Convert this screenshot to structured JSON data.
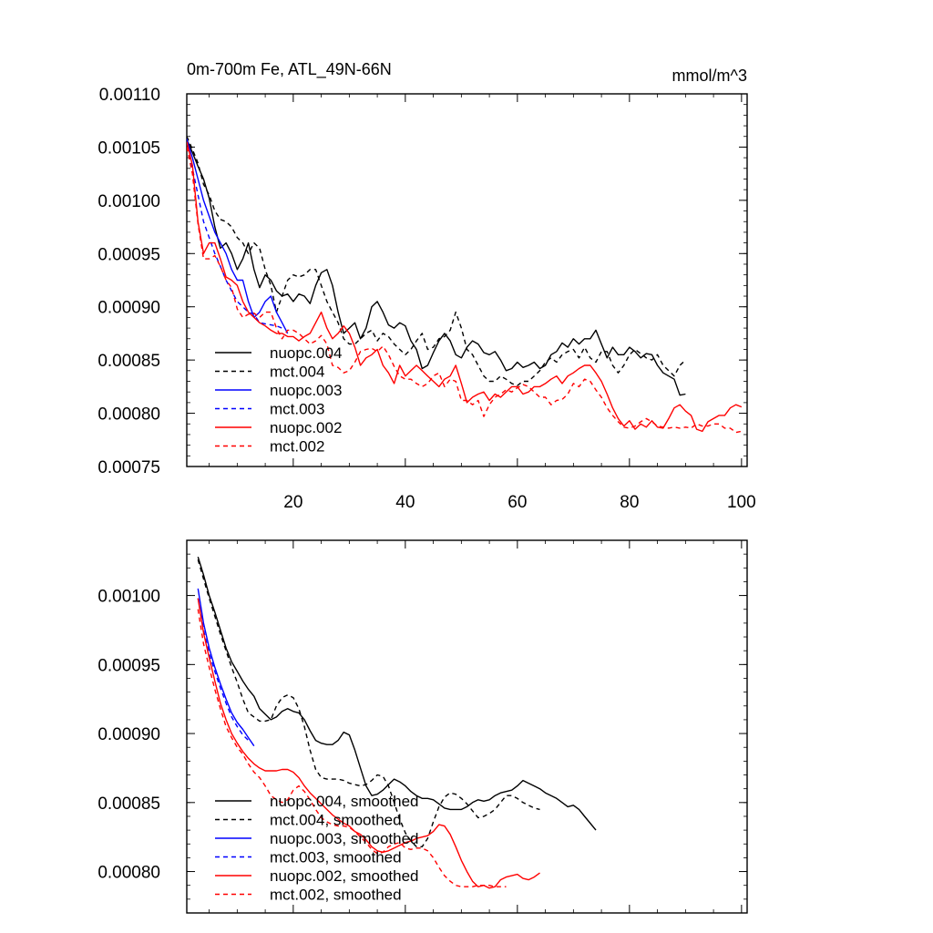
{
  "chart_data": [
    {
      "type": "line",
      "title": "0m-700m Fe, ATL_49N-66N",
      "units": "mmol/m^3",
      "xlim": [
        1,
        101
      ],
      "ylim": [
        0.00075,
        0.0011
      ],
      "xticks": [
        20,
        40,
        60,
        80,
        100
      ],
      "yticks": [
        0.00075,
        0.0008,
        0.00085,
        0.0009,
        0.00095,
        0.001,
        0.00105,
        0.0011
      ],
      "ytick_labels": [
        "0.00075",
        "0.00080",
        "0.00085",
        "0.00090",
        "0.00095",
        "0.00100",
        "0.00105",
        "0.00110"
      ],
      "legend": "bottom-left",
      "series": [
        {
          "name": "nuopc.004",
          "color": "#000000",
          "dash": "solid",
          "x_start": 1,
          "values": [
            0.001057,
            0.001045,
            0.001032,
            0.00102,
            0.001002,
            0.000975,
            0.000955,
            0.00096,
            0.00095,
            0.000935,
            0.000945,
            0.00096,
            0.000935,
            0.000918,
            0.00093,
            0.000925,
            0.000915,
            0.00091,
            0.000912,
            0.000905,
            0.000912,
            0.00091,
            0.000903,
            0.00092,
            0.000932,
            0.000935,
            0.00092,
            0.000895,
            0.000875,
            0.00088,
            0.000885,
            0.00087,
            0.00088,
            0.0009,
            0.000905,
            0.000895,
            0.000883,
            0.00088,
            0.000885,
            0.000882,
            0.000868,
            0.00086,
            0.000842,
            0.000845,
            0.000857,
            0.000868,
            0.000875,
            0.000868,
            0.000855,
            0.000852,
            0.000862,
            0.000868,
            0.000865,
            0.000857,
            0.000855,
            0.000858,
            0.00085,
            0.00084,
            0.000842,
            0.000848,
            0.000843,
            0.000845,
            0.000848,
            0.000842,
            0.000845,
            0.000855,
            0.000858,
            0.000866,
            0.000862,
            0.00087,
            0.000865,
            0.00087,
            0.00087,
            0.000878,
            0.000865,
            0.000852,
            0.000862,
            0.000855,
            0.000855,
            0.000862,
            0.000858,
            0.000852,
            0.000856,
            0.000855,
            0.000845,
            0.000838,
            0.000835,
            0.000832,
            0.000817,
            0.000818
          ]
        },
        {
          "name": "mct.004",
          "color": "#000000",
          "dash": "dashed",
          "x_start": 1,
          "values": [
            0.00106,
            0.001048,
            0.001035,
            0.001015,
            0.001005,
            0.00099,
            0.000982,
            0.00098,
            0.000975,
            0.000965,
            0.00096,
            0.00095,
            0.00096,
            0.000955,
            0.000935,
            0.00092,
            0.000895,
            0.00091,
            0.000925,
            0.00093,
            0.000928,
            0.00093,
            0.000935,
            0.000935,
            0.00092,
            0.000905,
            0.000895,
            0.000885,
            0.00087,
            0.000865,
            0.000865,
            0.00087,
            0.000875,
            0.000878,
            0.000868,
            0.000875,
            0.000872,
            0.000865,
            0.00086,
            0.000855,
            0.00086,
            0.000868,
            0.000875,
            0.00086,
            0.000862,
            0.00087,
            0.000872,
            0.000878,
            0.000895,
            0.00088,
            0.00086,
            0.000855,
            0.000845,
            0.000835,
            0.00083,
            0.00083,
            0.000835,
            0.000832,
            0.000828,
            0.000826,
            0.00083,
            0.00083,
            0.000835,
            0.00084,
            0.000848,
            0.000852,
            0.000848,
            0.000855,
            0.000858,
            0.00086,
            0.000852,
            0.000862,
            0.000852,
            0.000848,
            0.000858,
            0.000858,
            0.000845,
            0.000838,
            0.000845,
            0.000855,
            0.00086,
            0.000856,
            0.000852,
            0.00085,
            0.000855,
            0.000845,
            0.00084,
            0.000835,
            0.000845,
            0.00085
          ]
        },
        {
          "name": "nuopc.003",
          "color": "#0000ff",
          "dash": "solid",
          "x_start": 1,
          "values": [
            0.001057,
            0.00104,
            0.00102,
            0.001,
            0.000985,
            0.00097,
            0.00096,
            0.00095,
            0.000935,
            0.000925,
            0.000925,
            0.000905,
            0.00089,
            0.000895,
            0.000905,
            0.00091,
            0.000895,
            0.000885,
            0.000875
          ]
        },
        {
          "name": "mct.003",
          "color": "#0000ff",
          "dash": "dashed",
          "x_start": 1,
          "values": [
            0.001058,
            0.00103,
            0.001005,
            0.00098,
            0.000965,
            0.00095,
            0.000938,
            0.000925,
            0.000915,
            0.000905,
            0.0009,
            0.000895,
            0.000893,
            0.000885,
            0.000884,
            0.000883,
            0.000882,
            0.00088
          ]
        },
        {
          "name": "nuopc.002",
          "color": "#ff0000",
          "dash": "solid",
          "x_start": 1,
          "values": [
            0.001055,
            0.001033,
            0.00098,
            0.00095,
            0.00096,
            0.00096,
            0.000945,
            0.000928,
            0.000925,
            0.00092,
            0.000905,
            0.000895,
            0.00089,
            0.000885,
            0.000882,
            0.000878,
            0.000875,
            0.000875,
            0.000872,
            0.000872,
            0.000868,
            0.000872,
            0.000875,
            0.000885,
            0.000895,
            0.00088,
            0.00087,
            0.000875,
            0.000882,
            0.000875,
            0.000862,
            0.000845,
            0.000852,
            0.000855,
            0.00086,
            0.000845,
            0.000838,
            0.000828,
            0.000845,
            0.000835,
            0.00084,
            0.000845,
            0.00084,
            0.000835,
            0.00083,
            0.000825,
            0.000832,
            0.000835,
            0.000845,
            0.000828,
            0.00081,
            0.000815,
            0.000818,
            0.00082,
            0.000812,
            0.000818,
            0.000815,
            0.00082,
            0.000825,
            0.000825,
            0.000818,
            0.00082,
            0.000825,
            0.000825,
            0.000828,
            0.000832,
            0.000835,
            0.000828,
            0.000835,
            0.000838,
            0.000842,
            0.000845,
            0.000845,
            0.000838,
            0.00083,
            0.000818,
            0.000805,
            0.000795,
            0.000788,
            0.000793,
            0.000785,
            0.00079,
            0.000787,
            0.000793,
            0.000787,
            0.000786,
            0.000795,
            0.000805,
            0.000808,
            0.000802,
            0.000798,
            0.000785,
            0.000783,
            0.000792,
            0.000795,
            0.000798,
            0.000798,
            0.000805,
            0.000808,
            0.000806
          ]
        },
        {
          "name": "mct.002",
          "color": "#ff0000",
          "dash": "dashed",
          "x_start": 1,
          "values": [
            0.00105,
            0.001025,
            0.000978,
            0.000945,
            0.000945,
            0.000948,
            0.000938,
            0.000925,
            0.000918,
            0.000898,
            0.00089,
            0.000893,
            0.000894,
            0.00089,
            0.000895,
            0.000895,
            0.00088,
            0.00087,
            0.000878,
            0.000878,
            0.000875,
            0.00087,
            0.000865,
            0.000868,
            0.000873,
            0.000865,
            0.000845,
            0.000843,
            0.000838,
            0.00084,
            0.000848,
            0.000858,
            0.00086,
            0.000861,
            0.000858,
            0.000863,
            0.000855,
            0.000844,
            0.000835,
            0.000832,
            0.000832,
            0.000828,
            0.000825,
            0.000828,
            0.000835,
            0.000838,
            0.000825,
            0.000832,
            0.00083,
            0.000812,
            0.000812,
            0.000808,
            0.000812,
            0.000797,
            0.000808,
            0.000815,
            0.000818,
            0.000822,
            0.00082,
            0.000824,
            0.000827,
            0.000825,
            0.00082,
            0.000815,
            0.000815,
            0.000808,
            0.000812,
            0.000813,
            0.000818,
            0.000828,
            0.000825,
            0.000832,
            0.00083,
            0.000822,
            0.000815,
            0.000805,
            0.000798,
            0.000792,
            0.000787,
            0.000786,
            0.000788,
            0.000792,
            0.000795,
            0.000792,
            0.000788,
            0.000787,
            0.000786,
            0.000787,
            0.000786,
            0.000787,
            0.000786,
            0.00079,
            0.000788,
            0.000788,
            0.00079,
            0.00079,
            0.000786,
            0.000786,
            0.000782,
            0.000783
          ]
        }
      ]
    },
    {
      "type": "line",
      "xlim": [
        1,
        101
      ],
      "ylim": [
        0.00077,
        0.00104
      ],
      "xticks": [
        20,
        40,
        60,
        80,
        100
      ],
      "yticks": [
        0.0008,
        0.00085,
        0.0009,
        0.00095,
        0.001
      ],
      "ytick_labels": [
        "0.00080",
        "0.00085",
        "0.00090",
        "0.00095",
        "0.00100"
      ],
      "legend": "bottom-left",
      "series": [
        {
          "name": "nuopc.004, smoothed",
          "color": "#000000",
          "dash": "solid",
          "x_start": 3,
          "values": [
            0.001028,
            0.001015,
            0.001,
            0.000988,
            0.000975,
            0.000962,
            0.000952,
            0.000945,
            0.000938,
            0.000932,
            0.000927,
            0.000918,
            0.000914,
            0.00091,
            0.000912,
            0.000916,
            0.000918,
            0.000916,
            0.000915,
            0.00091,
            0.000902,
            0.000895,
            0.000893,
            0.000892,
            0.000892,
            0.000895,
            0.000901,
            0.000899,
            0.000888,
            0.000875,
            0.000862,
            0.000855,
            0.000856,
            0.000859,
            0.000863,
            0.000867,
            0.000865,
            0.000862,
            0.000858,
            0.000855,
            0.000853,
            0.000853,
            0.000852,
            0.000849,
            0.000846,
            0.000845,
            0.000845,
            0.000845,
            0.000847,
            0.00085,
            0.000852,
            0.000851,
            0.000852,
            0.000855,
            0.000857,
            0.000858,
            0.000859,
            0.000862,
            0.000866,
            0.000864,
            0.000862,
            0.00086,
            0.000857,
            0.000855,
            0.000853,
            0.00085,
            0.000847,
            0.000848,
            0.000845,
            0.00084,
            0.000835,
            0.00083
          ]
        },
        {
          "name": "mct.004, smoothed",
          "color": "#000000",
          "dash": "dashed",
          "x_start": 3,
          "values": [
            0.001026,
            0.001012,
            0.000998,
            0.000985,
            0.000972,
            0.00096,
            0.000948,
            0.000937,
            0.000925,
            0.000915,
            0.000912,
            0.000909,
            0.000909,
            0.00091,
            0.00092,
            0.000926,
            0.000928,
            0.000926,
            0.000918,
            0.000905,
            0.000888,
            0.000874,
            0.000868,
            0.000867,
            0.000867,
            0.000867,
            0.000866,
            0.000864,
            0.000863,
            0.000862,
            0.000863,
            0.000866,
            0.00087,
            0.000869,
            0.000862,
            0.00085,
            0.000838,
            0.000828,
            0.000822,
            0.000818,
            0.000818,
            0.000824,
            0.000836,
            0.000847,
            0.000854,
            0.000857,
            0.000856,
            0.000853,
            0.000849,
            0.000844,
            0.000839,
            0.00084,
            0.000842,
            0.000845,
            0.00085,
            0.000855,
            0.000855,
            0.000853,
            0.00085,
            0.000848,
            0.000846,
            0.000845
          ]
        },
        {
          "name": "nuopc.003, smoothed",
          "color": "#0000ff",
          "dash": "solid",
          "x_start": 3,
          "values": [
            0.001005,
            0.00098,
            0.000962,
            0.000948,
            0.000936,
            0.000925,
            0.000915,
            0.000908,
            0.000903,
            0.000897,
            0.000891
          ]
        },
        {
          "name": "mct.003, smoothed",
          "color": "#0000ff",
          "dash": "dashed",
          "x_start": 3,
          "values": [
            0.000998,
            0.000975,
            0.000958,
            0.000945,
            0.000933,
            0.000922,
            0.000912,
            0.000905,
            0.000899,
            0.000895
          ]
        },
        {
          "name": "nuopc.002, smoothed",
          "color": "#ff0000",
          "dash": "solid",
          "x_start": 3,
          "values": [
            0.000998,
            0.000973,
            0.000955,
            0.000938,
            0.000922,
            0.00091,
            0.0009,
            0.000893,
            0.000887,
            0.000882,
            0.000878,
            0.000875,
            0.000873,
            0.000873,
            0.000873,
            0.000874,
            0.000874,
            0.000872,
            0.000868,
            0.000862,
            0.000857,
            0.000853,
            0.000849,
            0.000845,
            0.000841,
            0.000838,
            0.000835,
            0.000833,
            0.000829,
            0.000827,
            0.000823,
            0.000818,
            0.000815,
            0.000814,
            0.000815,
            0.000817,
            0.000819,
            0.000821,
            0.000822,
            0.000824,
            0.000825,
            0.000826,
            0.000829,
            0.000834,
            0.000833,
            0.000827,
            0.000818,
            0.000808,
            0.0008,
            0.000793,
            0.000789,
            0.00079,
            0.000788,
            0.000789,
            0.000794,
            0.000796,
            0.000797,
            0.000798,
            0.000795,
            0.000794,
            0.000796,
            0.000799
          ]
        },
        {
          "name": "mct.002, smoothed",
          "color": "#ff0000",
          "dash": "dashed",
          "x_start": 3,
          "values": [
            0.00099,
            0.000965,
            0.000948,
            0.000932,
            0.000918,
            0.000905,
            0.000897,
            0.00089,
            0.000885,
            0.000878,
            0.000872,
            0.000868,
            0.000862,
            0.000855,
            0.000852,
            0.00085,
            0.000852,
            0.000859,
            0.000862,
            0.000858,
            0.000852,
            0.000845,
            0.000839,
            0.000836,
            0.000834,
            0.000833,
            0.000833,
            0.000832,
            0.000829,
            0.000825,
            0.000821,
            0.000816,
            0.000813,
            0.000814,
            0.000818,
            0.00082,
            0.000821,
            0.000817,
            0.000816,
            0.000817,
            0.000817,
            0.000815,
            0.00081,
            0.000803,
            0.000797,
            0.000793,
            0.00079,
            0.000789,
            0.000789,
            0.000789,
            0.00079,
            0.00079,
            0.00079,
            0.000789,
            0.000789,
            0.000789
          ]
        }
      ]
    }
  ]
}
